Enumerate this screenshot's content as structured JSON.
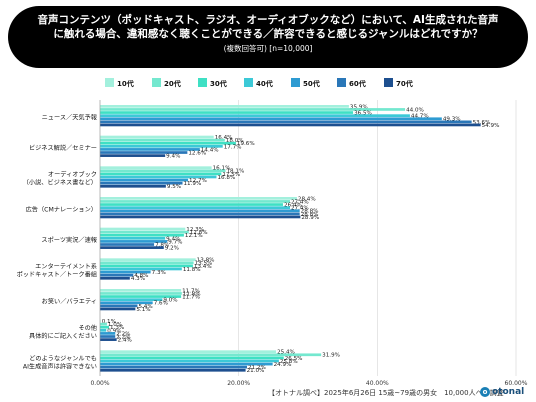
{
  "header": {
    "title_line1": "音声コンテンツ（ポッドキャスト、ラジオ、オーディオブックなど）において、AI生成された音声",
    "title_line2": "に触れる場合、違和感なく聴くことができる／許容できると感じるジャンルはどれですか？",
    "subtitle": "(複数回答可) [n=10,000]"
  },
  "footer": {
    "source": "【オトナル調べ】2025年6月26日 15歳~79歳の男女　10,000人への調査",
    "logo_text": "otonal",
    "logo_mark": "o"
  },
  "colors": {
    "series": [
      "#a3f0dd",
      "#74e8cf",
      "#3fe0c4",
      "#3cc9d7",
      "#2e9bd2",
      "#2a77b8",
      "#1d4f8f"
    ]
  },
  "chart_data": {
    "type": "bar",
    "orientation": "horizontal",
    "categories": [
      "ニュース／天気予報",
      "ビジネス解説／セミナー",
      "オーディオブック\n（小説、ビジネス書など）",
      "広告（CMナレーション）",
      "スポーツ実況／速報",
      "エンターテイメント系\nポッドキャスト／トーク番組",
      "お笑い／バラエティ",
      "その他\n具体的にご記入ください",
      "どのようなジャンルでも\nAI生成音声は許容できない"
    ],
    "series": [
      {
        "name": "10代",
        "values": [
          35.9,
          16.4,
          16.1,
          28.4,
          12.3,
          13.8,
          11.7,
          0.1,
          25.4
        ]
      },
      {
        "name": "20代",
        "values": [
          44.0,
          18.0,
          18.1,
          27.4,
          12.8,
          13.5,
          11.8,
          1.0,
          31.9
        ]
      },
      {
        "name": "30代",
        "values": [
          36.5,
          19.6,
          17.5,
          26.4,
          12.1,
          13.4,
          11.7,
          1.3,
          26.5
        ]
      },
      {
        "name": "40代",
        "values": [
          44.7,
          17.7,
          16.8,
          27.4,
          9.4,
          11.8,
          9.0,
          0.9,
          25.8
        ]
      },
      {
        "name": "50代",
        "values": [
          49.3,
          14.4,
          12.7,
          28.8,
          9.7,
          7.3,
          7.6,
          2.2,
          24.9
        ]
      },
      {
        "name": "60代",
        "values": [
          53.6,
          12.6,
          11.9,
          28.8,
          7.8,
          4.8,
          5.4,
          2.2,
          21.2
        ]
      },
      {
        "name": "70代",
        "values": [
          54.9,
          9.4,
          9.5,
          28.9,
          9.2,
          4.3,
          5.1,
          2.4,
          21.0
        ]
      }
    ],
    "xlim": [
      0,
      60
    ],
    "xticks": [
      "0.00%",
      "20.00%",
      "40.00%",
      "60.00%"
    ],
    "data_labels": [
      [
        "35.9%",
        "44.0%",
        "36.5%",
        "44.7%",
        "49.3%",
        "53.6%",
        "54.9%"
      ],
      [
        "16.4%",
        "18.0%",
        "19.6%",
        "17.7%",
        "14.4%",
        "12.6%",
        "9.4%"
      ],
      [
        "16.1%",
        "18.1%",
        "17.5%",
        "16.8%",
        "12.7%",
        "11.9%",
        "9.5%"
      ],
      [
        "28.4%",
        "27.4%",
        "26.4%",
        "27.4%",
        "28.8%",
        "28.8%",
        "28.9%"
      ],
      [
        "12.3%",
        "12.8%",
        "12.1%",
        "9.4%",
        "9.7%",
        "7.8%",
        "9.2%"
      ],
      [
        "13.8%",
        "13.5%",
        "13.4%",
        "11.8%",
        "7.3%",
        "4.8%",
        "4.3%"
      ],
      [
        "11.7%",
        "11.8%",
        "11.7%",
        "9.0%",
        "7.6%",
        "5.4%",
        "5.1%"
      ],
      [
        "0.1%",
        "1.0%",
        "1.3%",
        "0.9%",
        "2.2%",
        "2.2%",
        "2.4%"
      ],
      [
        "25.4%",
        "31.9%",
        "26.5%",
        "25.8%",
        "24.9%",
        "21.2%",
        "21.0%"
      ]
    ],
    "grid": true,
    "legend_position": "top"
  }
}
